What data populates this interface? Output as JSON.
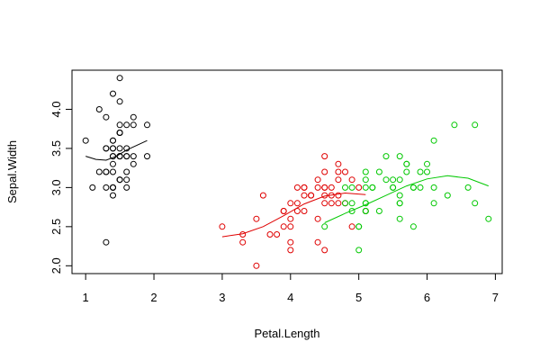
{
  "chart_data": {
    "type": "scatter",
    "xlabel": "Petal.Length",
    "ylabel": "Sepal.Width",
    "xlim": [
      0.8,
      7.1
    ],
    "ylim": [
      1.9,
      4.5
    ],
    "xticks": [
      "1",
      "2",
      "3",
      "4",
      "5",
      "6",
      "7"
    ],
    "yticks": [
      "2.0",
      "2.5",
      "3.0",
      "3.5",
      "4.0"
    ],
    "grid": false,
    "series": [
      {
        "color": "#000000",
        "points": [
          [
            1.4,
            3.5
          ],
          [
            1.4,
            3.0
          ],
          [
            1.3,
            3.2
          ],
          [
            1.5,
            3.1
          ],
          [
            1.4,
            3.6
          ],
          [
            1.7,
            3.9
          ],
          [
            1.4,
            3.4
          ],
          [
            1.5,
            3.4
          ],
          [
            1.4,
            2.9
          ],
          [
            1.5,
            3.1
          ],
          [
            1.5,
            3.7
          ],
          [
            1.6,
            3.4
          ],
          [
            1.4,
            3.0
          ],
          [
            1.1,
            3.0
          ],
          [
            1.2,
            4.0
          ],
          [
            1.5,
            4.4
          ],
          [
            1.3,
            3.9
          ],
          [
            1.4,
            3.5
          ],
          [
            1.7,
            3.8
          ],
          [
            1.5,
            3.8
          ],
          [
            1.7,
            3.4
          ],
          [
            1.5,
            3.7
          ],
          [
            1.0,
            3.6
          ],
          [
            1.7,
            3.3
          ],
          [
            1.9,
            3.4
          ],
          [
            1.6,
            3.0
          ],
          [
            1.6,
            3.4
          ],
          [
            1.5,
            3.5
          ],
          [
            1.4,
            3.4
          ],
          [
            1.6,
            3.2
          ],
          [
            1.6,
            3.1
          ],
          [
            1.5,
            3.4
          ],
          [
            1.5,
            4.1
          ],
          [
            1.4,
            4.2
          ],
          [
            1.5,
            3.1
          ],
          [
            1.2,
            3.2
          ],
          [
            1.3,
            3.5
          ],
          [
            1.4,
            3.6
          ],
          [
            1.3,
            3.0
          ],
          [
            1.5,
            3.4
          ],
          [
            1.3,
            3.5
          ],
          [
            1.3,
            2.3
          ],
          [
            1.3,
            3.2
          ],
          [
            1.6,
            3.5
          ],
          [
            1.9,
            3.8
          ],
          [
            1.4,
            3.0
          ],
          [
            1.6,
            3.8
          ],
          [
            1.4,
            3.2
          ],
          [
            1.5,
            3.7
          ],
          [
            1.4,
            3.3
          ]
        ],
        "trend": [
          [
            1.0,
            3.4
          ],
          [
            1.15,
            3.36
          ],
          [
            1.3,
            3.35
          ],
          [
            1.45,
            3.4
          ],
          [
            1.6,
            3.48
          ],
          [
            1.75,
            3.54
          ],
          [
            1.9,
            3.6
          ]
        ]
      },
      {
        "color": "#df0000",
        "points": [
          [
            4.7,
            3.2
          ],
          [
            4.5,
            3.2
          ],
          [
            4.9,
            3.1
          ],
          [
            4.0,
            2.3
          ],
          [
            4.6,
            2.8
          ],
          [
            4.5,
            2.8
          ],
          [
            4.7,
            3.3
          ],
          [
            3.3,
            2.4
          ],
          [
            4.6,
            2.9
          ],
          [
            3.9,
            2.7
          ],
          [
            3.5,
            2.0
          ],
          [
            4.2,
            3.0
          ],
          [
            4.0,
            2.2
          ],
          [
            4.7,
            2.9
          ],
          [
            3.6,
            2.9
          ],
          [
            4.4,
            3.1
          ],
          [
            4.5,
            3.0
          ],
          [
            4.1,
            2.7
          ],
          [
            4.5,
            2.2
          ],
          [
            3.9,
            2.5
          ],
          [
            4.8,
            3.2
          ],
          [
            4.0,
            2.8
          ],
          [
            4.9,
            2.5
          ],
          [
            4.7,
            2.8
          ],
          [
            4.3,
            2.9
          ],
          [
            4.4,
            3.0
          ],
          [
            4.8,
            2.8
          ],
          [
            5.0,
            3.0
          ],
          [
            4.5,
            2.9
          ],
          [
            3.5,
            2.6
          ],
          [
            3.8,
            2.4
          ],
          [
            3.7,
            2.4
          ],
          [
            3.9,
            2.7
          ],
          [
            5.1,
            2.7
          ],
          [
            4.5,
            3.0
          ],
          [
            4.5,
            3.4
          ],
          [
            4.7,
            3.1
          ],
          [
            4.4,
            2.3
          ],
          [
            4.1,
            3.0
          ],
          [
            4.0,
            2.5
          ],
          [
            4.4,
            2.6
          ],
          [
            4.6,
            3.0
          ],
          [
            4.0,
            2.6
          ],
          [
            3.3,
            2.3
          ],
          [
            4.2,
            2.7
          ],
          [
            4.2,
            3.0
          ],
          [
            4.2,
            2.9
          ],
          [
            4.3,
            2.9
          ],
          [
            3.0,
            2.5
          ],
          [
            4.1,
            2.8
          ]
        ],
        "trend": [
          [
            3.0,
            2.37
          ],
          [
            3.3,
            2.41
          ],
          [
            3.6,
            2.5
          ],
          [
            3.9,
            2.64
          ],
          [
            4.2,
            2.79
          ],
          [
            4.5,
            2.89
          ],
          [
            4.8,
            2.93
          ],
          [
            5.1,
            2.91
          ]
        ]
      },
      {
        "color": "#00c800",
        "points": [
          [
            6.0,
            3.3
          ],
          [
            5.1,
            2.7
          ],
          [
            5.9,
            3.0
          ],
          [
            5.6,
            2.9
          ],
          [
            5.8,
            3.0
          ],
          [
            6.6,
            3.0
          ],
          [
            4.5,
            2.5
          ],
          [
            6.3,
            2.9
          ],
          [
            5.8,
            2.5
          ],
          [
            6.1,
            3.6
          ],
          [
            5.1,
            3.2
          ],
          [
            5.3,
            2.7
          ],
          [
            5.5,
            3.0
          ],
          [
            5.0,
            2.5
          ],
          [
            5.1,
            2.8
          ],
          [
            5.3,
            3.2
          ],
          [
            5.5,
            3.0
          ],
          [
            6.7,
            3.8
          ],
          [
            6.9,
            2.6
          ],
          [
            5.0,
            2.2
          ],
          [
            5.7,
            3.2
          ],
          [
            4.9,
            2.8
          ],
          [
            6.7,
            2.8
          ],
          [
            4.9,
            2.7
          ],
          [
            5.7,
            3.3
          ],
          [
            6.0,
            3.2
          ],
          [
            4.8,
            2.8
          ],
          [
            4.9,
            3.0
          ],
          [
            5.6,
            2.8
          ],
          [
            5.8,
            3.0
          ],
          [
            6.1,
            2.8
          ],
          [
            6.4,
            3.8
          ],
          [
            5.6,
            2.8
          ],
          [
            5.1,
            2.8
          ],
          [
            5.6,
            2.6
          ],
          [
            6.1,
            3.0
          ],
          [
            5.6,
            3.4
          ],
          [
            5.5,
            3.1
          ],
          [
            4.8,
            3.0
          ],
          [
            5.4,
            3.1
          ],
          [
            5.6,
            3.1
          ],
          [
            5.1,
            3.1
          ],
          [
            5.1,
            2.7
          ],
          [
            5.9,
            3.2
          ],
          [
            5.7,
            3.3
          ],
          [
            5.2,
            3.0
          ],
          [
            5.0,
            2.5
          ],
          [
            5.2,
            3.0
          ],
          [
            5.4,
            3.4
          ],
          [
            5.1,
            3.0
          ]
        ],
        "trend": [
          [
            4.5,
            2.55
          ],
          [
            4.8,
            2.67
          ],
          [
            5.1,
            2.78
          ],
          [
            5.4,
            2.9
          ],
          [
            5.7,
            3.02
          ],
          [
            6.0,
            3.11
          ],
          [
            6.3,
            3.15
          ],
          [
            6.6,
            3.12
          ],
          [
            6.9,
            3.02
          ]
        ]
      }
    ]
  }
}
